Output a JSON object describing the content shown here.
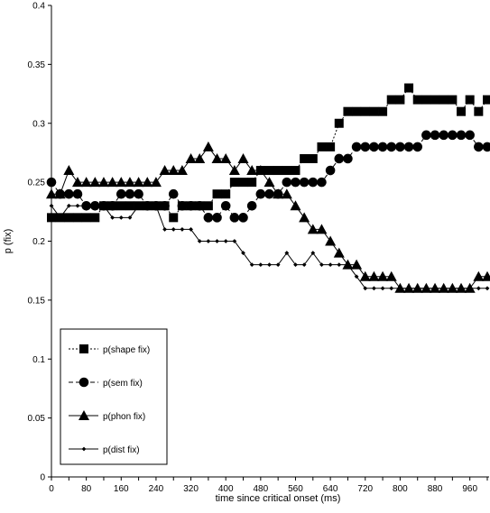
{
  "chart_data": {
    "type": "line",
    "xlabel": "time since critical onset (ms)",
    "ylabel": "p (fix)",
    "xlim": [
      0,
      1000
    ],
    "ylim": [
      0,
      0.4
    ],
    "x_ticks": [
      "0",
      "80",
      "160",
      "240",
      "320",
      "400",
      "480",
      "560",
      "640",
      "720",
      "800",
      "880",
      "960"
    ],
    "y_ticks": [
      "0",
      "0.05",
      "0.1",
      "0.15",
      "0.2",
      "0.25",
      "0.3",
      "0.35",
      "0.4"
    ],
    "grid": false,
    "legend_position": "bottom-left",
    "x": [
      0,
      20,
      40,
      60,
      80,
      100,
      120,
      140,
      160,
      180,
      200,
      220,
      240,
      260,
      280,
      300,
      320,
      340,
      360,
      380,
      400,
      420,
      440,
      460,
      480,
      500,
      520,
      540,
      560,
      580,
      600,
      620,
      640,
      660,
      680,
      700,
      720,
      740,
      760,
      780,
      800,
      820,
      840,
      860,
      880,
      900,
      920,
      940,
      960,
      980,
      1000
    ],
    "series": [
      {
        "name": "p(shape fix)",
        "marker": "square",
        "line_style": "dotted",
        "values": [
          0.22,
          0.22,
          0.22,
          0.22,
          0.22,
          0.22,
          0.23,
          0.23,
          0.23,
          0.23,
          0.23,
          0.23,
          0.23,
          0.23,
          0.22,
          0.23,
          0.23,
          0.23,
          0.23,
          0.24,
          0.24,
          0.25,
          0.25,
          0.25,
          0.26,
          0.26,
          0.26,
          0.26,
          0.26,
          0.27,
          0.27,
          0.28,
          0.28,
          0.3,
          0.31,
          0.31,
          0.31,
          0.31,
          0.31,
          0.32,
          0.32,
          0.33,
          0.32,
          0.32,
          0.32,
          0.32,
          0.32,
          0.31,
          0.32,
          0.31,
          0.32
        ]
      },
      {
        "name": "p(sem fix)",
        "marker": "circle",
        "line_style": "dashed",
        "values": [
          0.25,
          0.24,
          0.24,
          0.24,
          0.23,
          0.23,
          0.23,
          0.23,
          0.24,
          0.24,
          0.24,
          0.23,
          0.23,
          0.23,
          0.24,
          0.23,
          0.23,
          0.23,
          0.22,
          0.22,
          0.23,
          0.22,
          0.22,
          0.23,
          0.24,
          0.24,
          0.24,
          0.25,
          0.25,
          0.25,
          0.25,
          0.25,
          0.26,
          0.27,
          0.27,
          0.28,
          0.28,
          0.28,
          0.28,
          0.28,
          0.28,
          0.28,
          0.28,
          0.29,
          0.29,
          0.29,
          0.29,
          0.29,
          0.29,
          0.28,
          0.28
        ]
      },
      {
        "name": "p(phon fix)",
        "marker": "triangle",
        "line_style": "solid",
        "values": [
          0.24,
          0.24,
          0.26,
          0.25,
          0.25,
          0.25,
          0.25,
          0.25,
          0.25,
          0.25,
          0.25,
          0.25,
          0.25,
          0.26,
          0.26,
          0.26,
          0.27,
          0.27,
          0.28,
          0.27,
          0.27,
          0.26,
          0.27,
          0.26,
          0.26,
          0.25,
          0.24,
          0.24,
          0.23,
          0.22,
          0.21,
          0.21,
          0.2,
          0.19,
          0.18,
          0.18,
          0.17,
          0.17,
          0.17,
          0.17,
          0.16,
          0.16,
          0.16,
          0.16,
          0.16,
          0.16,
          0.16,
          0.16,
          0.16,
          0.17,
          0.17
        ]
      },
      {
        "name": "p(dist fix)",
        "marker": "small-diamond",
        "line_style": "solid",
        "values": [
          0.23,
          0.22,
          0.23,
          0.23,
          0.23,
          0.23,
          0.23,
          0.22,
          0.22,
          0.22,
          0.23,
          0.23,
          0.23,
          0.21,
          0.21,
          0.21,
          0.21,
          0.2,
          0.2,
          0.2,
          0.2,
          0.2,
          0.19,
          0.18,
          0.18,
          0.18,
          0.18,
          0.19,
          0.18,
          0.18,
          0.19,
          0.18,
          0.18,
          0.18,
          0.18,
          0.17,
          0.16,
          0.16,
          0.16,
          0.16,
          0.16,
          0.16,
          0.16,
          0.16,
          0.16,
          0.16,
          0.16,
          0.16,
          0.16,
          0.16,
          0.16
        ]
      }
    ]
  }
}
